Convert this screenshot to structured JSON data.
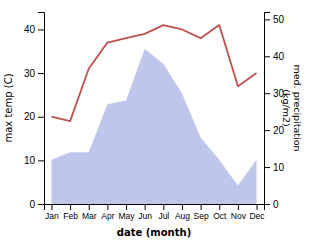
{
  "chart_data": {
    "type": "line",
    "categories": [
      "Jan",
      "Feb",
      "Mar",
      "Apr",
      "May",
      "Jun",
      "Jul",
      "Aug",
      "Sep",
      "Oct",
      "Nov",
      "Dec"
    ],
    "series": [
      {
        "type": "area",
        "axis": "y2",
        "color": "#b3bce8",
        "values": [
          12,
          14,
          14,
          27,
          28,
          42,
          38,
          30,
          18,
          12,
          5,
          12
        ]
      },
      {
        "type": "line",
        "color": "#c0504d",
        "values": [
          20,
          19,
          31,
          37,
          38,
          39,
          41,
          40,
          38,
          41,
          27,
          30
        ]
      }
    ],
    "xlabel": "date (month)",
    "ylabel": "max temp (C)",
    "y2label": "med. precipitation\n(kg/m2)",
    "ylim": [
      0,
      44
    ],
    "yticks": [
      0,
      10,
      20,
      30,
      40
    ],
    "y2lim": [
      0,
      52
    ],
    "y2ticks": [
      0,
      10,
      20,
      30,
      40,
      50
    ],
    "grid": false
  }
}
